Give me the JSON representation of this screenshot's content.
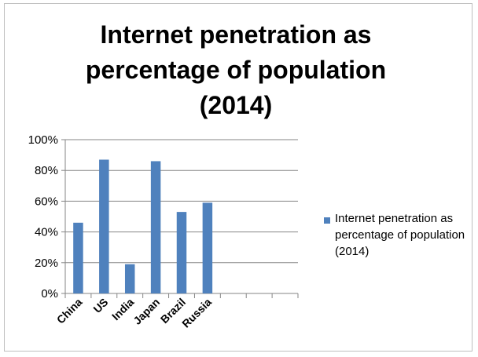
{
  "chart_data": {
    "type": "bar",
    "title": "Internet penetration as\npercentage of population\n(2014)",
    "categories": [
      "China",
      "US",
      "India",
      "Japan",
      "Brazil",
      "Russia",
      "",
      "",
      ""
    ],
    "series": [
      {
        "name": "Internet penetration as percentage of population (2014)",
        "values": [
          46,
          87,
          19,
          86,
          53,
          59,
          null,
          null,
          null
        ]
      }
    ],
    "yticks": [
      "0%",
      "20%",
      "40%",
      "60%",
      "80%",
      "100%"
    ],
    "ylim": [
      0,
      100
    ],
    "grid": true,
    "legend_position": "right",
    "bar_color": "#4f81bd"
  }
}
